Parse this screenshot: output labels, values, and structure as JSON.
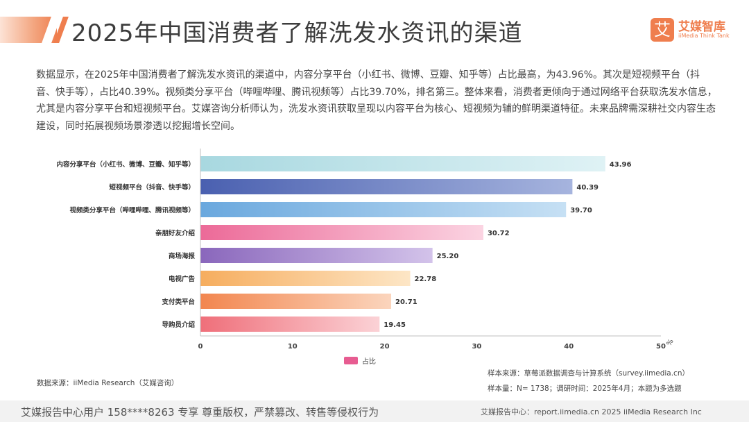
{
  "header": {
    "title": "2025年中国消费者了解洗发水资讯的渠道",
    "logo_mark": "艾",
    "logo_cn": "艾媒智库",
    "logo_en": "iiMedia Think Tank"
  },
  "description": "数据显示，在2025年中国消费者了解洗发水资讯的渠道中，内容分享平台（小红书、微博、豆瓣、知乎等）占比最高，为43.96%。其次是短视频平台（抖音、快手等），占比40.39%。视频类分享平台（哔哩哔哩、腾讯视频等）占比39.70%，排名第三。整体来看，消费者更倾向于通过网络平台获取洗发水信息，尤其是内容分享平台和短视频平台。艾媒咨询分析师认为，洗发水资讯获取呈现以内容平台为核心、短视频为辅的鲜明渠道特征。未来品牌需深耕社交内容生态建设，同时拓展视频场景渗透以挖掘增长空间。",
  "chart_data": {
    "type": "bar",
    "orientation": "horizontal",
    "categories": [
      "内容分享平台（小红书、微博、豆瓣、知乎等）",
      "短视频平台（抖音、快手等）",
      "视频类分享平台（哔哩哔哩、腾讯视频等）",
      "亲朋好友介绍",
      "商场海报",
      "电视广告",
      "支付类平台",
      "导购员介绍"
    ],
    "series": [
      {
        "name": "占比",
        "values": [
          43.96,
          40.39,
          39.7,
          30.72,
          25.2,
          22.78,
          20.71,
          19.45
        ]
      }
    ],
    "value_labels": [
      "43.96",
      "40.39",
      "39.70",
      "30.72",
      "25.20",
      "22.78",
      "20.71",
      "19.45"
    ],
    "xlim": [
      0,
      50
    ],
    "xticks": [
      0,
      10,
      20,
      30,
      40,
      50
    ],
    "xunit": "%",
    "grid": false,
    "legend_position": "bottom",
    "bar_colors": [
      [
        "#a8d8e0",
        "#dff2f5"
      ],
      [
        "#4a60b0",
        "#a6b4de"
      ],
      [
        "#6aa8de",
        "#c6e0f4"
      ],
      [
        "#ec6a98",
        "#fbd4e2"
      ],
      [
        "#8a67bc",
        "#d3c3ea"
      ],
      [
        "#f6ad5e",
        "#fde6c6"
      ],
      [
        "#f2864f",
        "#fbd5bd"
      ],
      [
        "#ef6f7a",
        "#fbd2d6"
      ]
    ]
  },
  "legend": {
    "swatch_color": "#e75c91",
    "label": "占比"
  },
  "notes": {
    "sample_source": "样本来源：草莓派数据调查与计算系统（survey.iimedia.cn）",
    "sample_size": "样本量：N= 1738；调研时间：2025年4月；本题为多选题",
    "data_source": "数据来源：iiMedia Research（艾媒咨询）"
  },
  "footer": {
    "left": "艾媒报告中心用户 158****8263 专享 尊重版权，严禁篡改、转售等侵权行为",
    "right": "艾媒报告中心：report.iimedia.cn  2025 iiMedia Research Inc"
  },
  "colors": {
    "accent": "#ef7e4e",
    "axis": "#bfbfbf"
  }
}
